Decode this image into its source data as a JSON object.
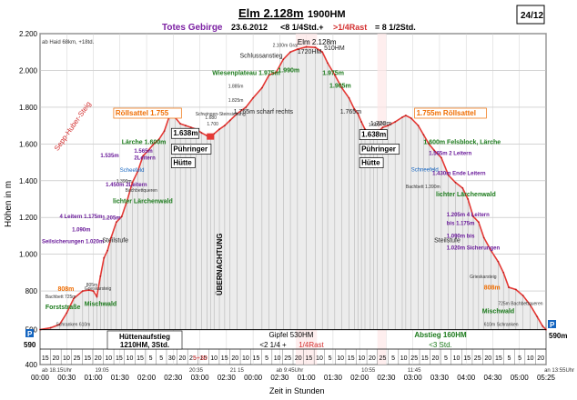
{
  "header": {
    "main_title": "Elm 2.128m",
    "total_climb": "1900HM",
    "region": "Totes Gebirge",
    "date": "23.6.2012",
    "time_note_prefix": "<8 1/4Std.+",
    "time_note_rest": ">1/4Rast",
    "time_note_total": "= 8 1/2Std.",
    "page_number": "24/12"
  },
  "chart_data": {
    "type": "line",
    "title": "Elm 2.128m 1900HM",
    "xlabel": "Zeit in Stunden",
    "ylabel": "Höhen in m",
    "xlim_minutes": [
      0,
      570
    ],
    "ylim": [
      400,
      2200
    ],
    "y_ticks": [
      400,
      590,
      800,
      1000,
      1200,
      1400,
      1600,
      1800,
      2000,
      2200
    ],
    "y_tick_labels": [
      "400",
      "590",
      "800",
      "1.000",
      "1.200",
      "1.400",
      "1.600",
      "1.800",
      "2.000",
      "2.200"
    ],
    "x_ticks_minutes": [
      0,
      30,
      60,
      90,
      120,
      150,
      180,
      210,
      240,
      270,
      300,
      330,
      360,
      390,
      420,
      450,
      480,
      510,
      540,
      570
    ],
    "x_tick_labels": [
      "00:00",
      "00:30",
      "01:00",
      "01:30",
      "02:00",
      "02:30",
      "03:00",
      "02:30",
      "00:00",
      "02:30",
      "01:00",
      "01:30",
      "02:00",
      "02:30",
      "03:00",
      "03:30",
      "04:00",
      "04:30",
      "05:00",
      "05:25"
    ],
    "series": [
      {
        "name": "Höhenprofil",
        "points": [
          [
            0,
            590
          ],
          [
            12,
            600
          ],
          [
            22,
            618
          ],
          [
            30,
            680
          ],
          [
            38,
            760
          ],
          [
            48,
            800
          ],
          [
            55,
            805
          ],
          [
            60,
            800
          ],
          [
            64,
            770
          ],
          [
            68,
            880
          ],
          [
            72,
            980
          ],
          [
            76,
            1020
          ],
          [
            80,
            1090
          ],
          [
            86,
            1175
          ],
          [
            92,
            1205
          ],
          [
            98,
            1290
          ],
          [
            104,
            1390
          ],
          [
            110,
            1450
          ],
          [
            116,
            1535
          ],
          [
            122,
            1565
          ],
          [
            128,
            1600
          ],
          [
            134,
            1625
          ],
          [
            140,
            1670
          ],
          [
            146,
            1755
          ],
          [
            152,
            1745
          ],
          [
            158,
            1710
          ],
          [
            164,
            1700
          ],
          [
            170,
            1690
          ],
          [
            176,
            1680
          ],
          [
            182,
            1660
          ],
          [
            188,
            1645
          ],
          [
            192,
            1638
          ],
          [
            196,
            1655
          ],
          [
            202,
            1680
          ],
          [
            208,
            1700
          ],
          [
            214,
            1728
          ],
          [
            222,
            1765
          ],
          [
            232,
            1800
          ],
          [
            240,
            1850
          ],
          [
            250,
            1905
          ],
          [
            258,
            1975
          ],
          [
            266,
            1990
          ],
          [
            274,
            2060
          ],
          [
            282,
            2100
          ],
          [
            290,
            2115
          ],
          [
            300,
            2128
          ],
          [
            310,
            2125
          ],
          [
            318,
            2100
          ],
          [
            324,
            2040
          ],
          [
            332,
            1975
          ],
          [
            340,
            1905
          ],
          [
            348,
            1850
          ],
          [
            354,
            1790
          ],
          [
            358,
            1765
          ],
          [
            362,
            1720
          ],
          [
            366,
            1680
          ],
          [
            372,
            1650
          ],
          [
            376,
            1638
          ],
          [
            380,
            1660
          ],
          [
            386,
            1690
          ],
          [
            392,
            1700
          ],
          [
            400,
            1720
          ],
          [
            408,
            1745
          ],
          [
            412,
            1755
          ],
          [
            418,
            1740
          ],
          [
            426,
            1700
          ],
          [
            432,
            1650
          ],
          [
            438,
            1600
          ],
          [
            444,
            1565
          ],
          [
            452,
            1525
          ],
          [
            460,
            1430
          ],
          [
            468,
            1390
          ],
          [
            476,
            1360
          ],
          [
            482,
            1300
          ],
          [
            488,
            1205
          ],
          [
            494,
            1175
          ],
          [
            500,
            1090
          ],
          [
            508,
            1020
          ],
          [
            516,
            960
          ],
          [
            522,
            900
          ],
          [
            528,
            820
          ],
          [
            536,
            808
          ],
          [
            544,
            775
          ],
          [
            552,
            725
          ],
          [
            560,
            660
          ],
          [
            566,
            610
          ],
          [
            570,
            590
          ]
        ]
      }
    ],
    "rest_segments_minutes": [
      [
        288,
        312
      ],
      [
        380,
        390
      ]
    ],
    "rest_labels": [
      "RAST",
      "RAST"
    ],
    "overnight_label": "ÜBERNACHTUNG",
    "labels": [
      {
        "at": [
          20,
          800
        ],
        "text": "808m",
        "kind": "orange"
      },
      {
        "at": [
          50,
          805
        ],
        "text": "Grieskarsteig",
        "kind": "small"
      },
      {
        "at": [
          52,
          826
        ],
        "text": "805m",
        "kind": "small"
      },
      {
        "at": [
          6,
          702
        ],
        "text": "Forststraße",
        "kind": "green"
      },
      {
        "at": [
          50,
          720
        ],
        "text": "Mischwald",
        "kind": "green"
      },
      {
        "at": [
          6,
          760
        ],
        "text": "Bachbett 725m",
        "kind": "small"
      },
      {
        "at": [
          18,
          610
        ],
        "text": "Schranken 610m",
        "kind": "small"
      },
      {
        "at": [
          2,
          1060
        ],
        "text": "Seilsicherungen 1.020m",
        "kind": "purple"
      },
      {
        "at": [
          36,
          1125
        ],
        "text": "1.090m",
        "kind": "purple"
      },
      {
        "at": [
          22,
          1195
        ],
        "text": "4 Leitern 1.175m",
        "kind": "purple"
      },
      {
        "at": [
          70,
          1188
        ],
        "text": "1.205m",
        "kind": "purple"
      },
      {
        "at": [
          70,
          1065
        ],
        "text": "Steilstufe",
        "kind": "dark"
      },
      {
        "at": [
          82,
          1278
        ],
        "text": "lichter Lärchenwald",
        "kind": "green"
      },
      {
        "at": [
          74,
          1368
        ],
        "text": "1.450m 2Leitern",
        "kind": "purple"
      },
      {
        "at": [
          86,
          1390
        ],
        "text": "1.390m",
        "kind": "small"
      },
      {
        "at": [
          96,
          1340
        ],
        "text": "Bachbettqueren",
        "kind": "small"
      },
      {
        "at": [
          90,
          1448
        ],
        "text": "Scheefeld",
        "kind": "blue"
      },
      {
        "at": [
          68,
          1527
        ],
        "text": "1.535m",
        "kind": "purple"
      },
      {
        "at": [
          106,
          1552
        ],
        "text": "1.565m",
        "kind": "purple"
      },
      {
        "at": [
          106,
          1515
        ],
        "text": "2Leitern",
        "kind": "purple"
      },
      {
        "at": [
          92,
          1600
        ],
        "text": "Lärche 1.600m",
        "kind": "green"
      },
      {
        "at": [
          20,
          1560
        ],
        "text": "Sepp-Huber-Steig",
        "kind": "redrot"
      },
      {
        "at": [
          85,
          1755
        ],
        "text": "Röllsattel 1.755",
        "kind": "orangebox"
      },
      {
        "at": [
          150,
          1645
        ],
        "text": "1.638m",
        "kind": "hutname"
      },
      {
        "at": [
          150,
          1560
        ],
        "text": "Pühringer",
        "kind": "hutname"
      },
      {
        "at": [
          150,
          1485
        ],
        "text": "Hütte",
        "kind": "hutname"
      },
      {
        "at": [
          175,
          1755
        ],
        "text": "Schwingen-Steinsiebung",
        "kind": "small"
      },
      {
        "at": [
          188,
          1700
        ],
        "text": "1.700",
        "kind": "small"
      },
      {
        "at": [
          186,
          1735
        ],
        "text": "1.680",
        "kind": "small"
      },
      {
        "at": [
          218,
          1765
        ],
        "text": "1.765m scharf rechts",
        "kind": "dark"
      },
      {
        "at": [
          212,
          1830
        ],
        "text": "1.825m",
        "kind": "small"
      },
      {
        "at": [
          212,
          1905
        ],
        "text": "1.885m",
        "kind": "small"
      },
      {
        "at": [
          194,
          1975
        ],
        "text": "Wiesenplateau 1.975m",
        "kind": "green"
      },
      {
        "at": [
          268,
          1990
        ],
        "text": "1.990m",
        "kind": "green"
      },
      {
        "at": [
          225,
          2070
        ],
        "text": "Schlussanstieg",
        "kind": "dark"
      },
      {
        "at": [
          262,
          2128
        ],
        "text": "2.100m Grat",
        "kind": "small"
      },
      {
        "at": [
          290,
          2140
        ],
        "text": "Elm 2.128m",
        "kind": "title"
      },
      {
        "at": [
          290,
          2090
        ],
        "text": "1720HM",
        "kind": "dark"
      },
      {
        "at": [
          320,
          2110
        ],
        "text": "510HM",
        "kind": "dark"
      },
      {
        "at": [
          318,
          1975
        ],
        "text": "1.975m",
        "kind": "green"
      },
      {
        "at": [
          326,
          1905
        ],
        "text": "1.905m",
        "kind": "green"
      },
      {
        "at": [
          338,
          1765
        ],
        "text": "1.765m",
        "kind": "dark"
      },
      {
        "at": [
          362,
          1638
        ],
        "text": "1.638m",
        "kind": "hutname"
      },
      {
        "at": [
          362,
          1560
        ],
        "text": "Pühringer",
        "kind": "hutname"
      },
      {
        "at": [
          362,
          1485
        ],
        "text": "Hütte",
        "kind": "hutname"
      },
      {
        "at": [
          376,
          1700
        ],
        "text": "1.700",
        "kind": "small"
      },
      {
        "at": [
          370,
          1695
        ],
        "text": "1.690",
        "kind": "small"
      },
      {
        "at": [
          372,
          1700
        ],
        "text": "1.720m",
        "kind": "dark"
      },
      {
        "at": [
          424,
          1755
        ],
        "text": "1.755m Röllsattel",
        "kind": "orangebox"
      },
      {
        "at": [
          432,
          1600
        ],
        "text": "1.600m Felsblock, Lärche",
        "kind": "green"
      },
      {
        "at": [
          438,
          1540
        ],
        "text": "1.565m 2 Leitern",
        "kind": "purple"
      },
      {
        "at": [
          418,
          1450
        ],
        "text": "Schneefeld",
        "kind": "blue"
      },
      {
        "at": [
          442,
          1430
        ],
        "text": "1.430m Ende Leitern",
        "kind": "purple"
      },
      {
        "at": [
          412,
          1360
        ],
        "text": "Bachbett 1.390m",
        "kind": "small"
      },
      {
        "at": [
          446,
          1315
        ],
        "text": "lichter Lärchenwald",
        "kind": "green"
      },
      {
        "at": [
          458,
          1205
        ],
        "text": "1.205m 4 Leitern",
        "kind": "purple"
      },
      {
        "at": [
          458,
          1160
        ],
        "text": "bis 1.175m",
        "kind": "purple"
      },
      {
        "at": [
          458,
          1090
        ],
        "text": "1.090m bis",
        "kind": "purple"
      },
      {
        "at": [
          458,
          1025
        ],
        "text": "1.020m Sicherungen",
        "kind": "purple"
      },
      {
        "at": [
          444,
          1065
        ],
        "text": "Steilstufe",
        "kind": "dark"
      },
      {
        "at": [
          484,
          870
        ],
        "text": "Grieskarsteig",
        "kind": "small"
      },
      {
        "at": [
          500,
          808
        ],
        "text": "808m",
        "kind": "orange"
      },
      {
        "at": [
          516,
          725
        ],
        "text": "725m Bachbettqueren",
        "kind": "small"
      },
      {
        "at": [
          498,
          680
        ],
        "text": "Mischwald",
        "kind": "green"
      },
      {
        "at": [
          500,
          610
        ],
        "text": "610m Schranken",
        "kind": "small"
      }
    ],
    "bottom_band": {
      "left_title": "Hüttenaufstieg",
      "left_sub": "1210HM, 3Std.",
      "mid_title": "Gipfel 530HM",
      "mid_sub_prefix": "<2 1/4 +",
      "mid_sub_rest": "1/4Rast",
      "right_title": "Abstieg 160HM",
      "right_sub": "<3 Std.",
      "rest_marker": "5+30",
      "segment_minutes": [
        "15",
        "20",
        "10",
        "25",
        "15",
        "20",
        "10",
        "15",
        "10",
        "15",
        "5",
        "5",
        "30",
        "20",
        "25",
        "15",
        "10",
        "15",
        "20",
        "10",
        "15",
        "5",
        "10",
        "25",
        "20",
        "15",
        "10",
        "5",
        "10",
        "15",
        "10",
        "20",
        "25",
        "5",
        "10",
        "25",
        "15",
        "20",
        "5",
        "10",
        "15",
        "25",
        "20",
        "15",
        "5",
        "5",
        "10",
        "20"
      ]
    },
    "time_stamps": [
      "ab 18.15Uhr",
      "19:05",
      "20:35",
      "21 15",
      "ab 9:45Uhr",
      "10:55",
      "11:45",
      "an 13:55Uhr"
    ],
    "start_label_left": "ab Haid 68km, +18td.",
    "parking_label_left": "590",
    "parking_label_right": "590m",
    "parking_symbol": "P"
  }
}
